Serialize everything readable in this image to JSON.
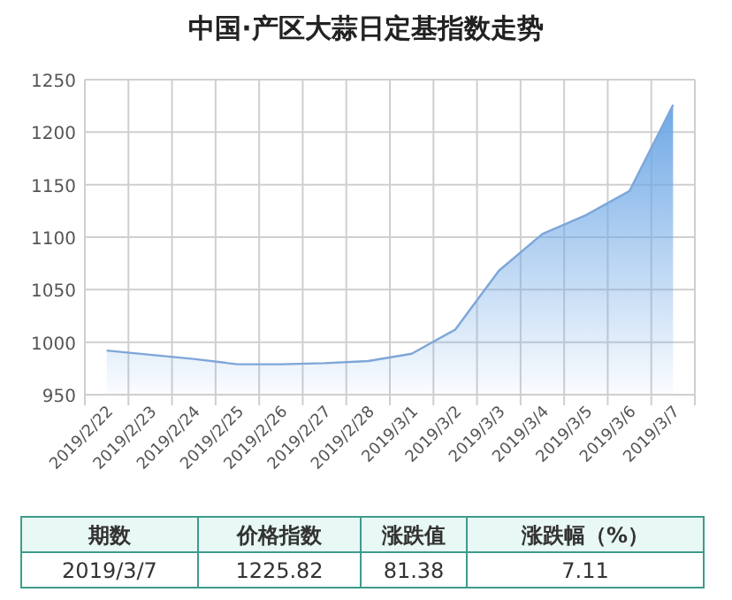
{
  "chart_data": {
    "type": "area",
    "title": "中国·产区大蒜日定基指数走势",
    "categories": [
      "2019/2/22",
      "2019/2/23",
      "2019/2/24",
      "2019/2/25",
      "2019/2/26",
      "2019/2/27",
      "2019/2/28",
      "2019/3/1",
      "2019/3/2",
      "2019/3/3",
      "2019/3/4",
      "2019/3/5",
      "2019/3/6",
      "2019/3/7"
    ],
    "values": [
      992,
      988,
      984,
      979,
      979,
      980,
      982,
      989,
      1012,
      1068,
      1103,
      1121,
      1144,
      1226
    ],
    "color": "#6fa8e6",
    "ylim": [
      950,
      1250
    ],
    "yticks": [
      950,
      1000,
      1050,
      1100,
      1150,
      1200,
      1250
    ],
    "grid": true,
    "annotations": [
      "期数",
      "价格指数",
      "涨跌值",
      "涨跌幅（%）",
      "2019/3/7",
      "1225.82",
      "81.38",
      "7.11"
    ]
  }
}
